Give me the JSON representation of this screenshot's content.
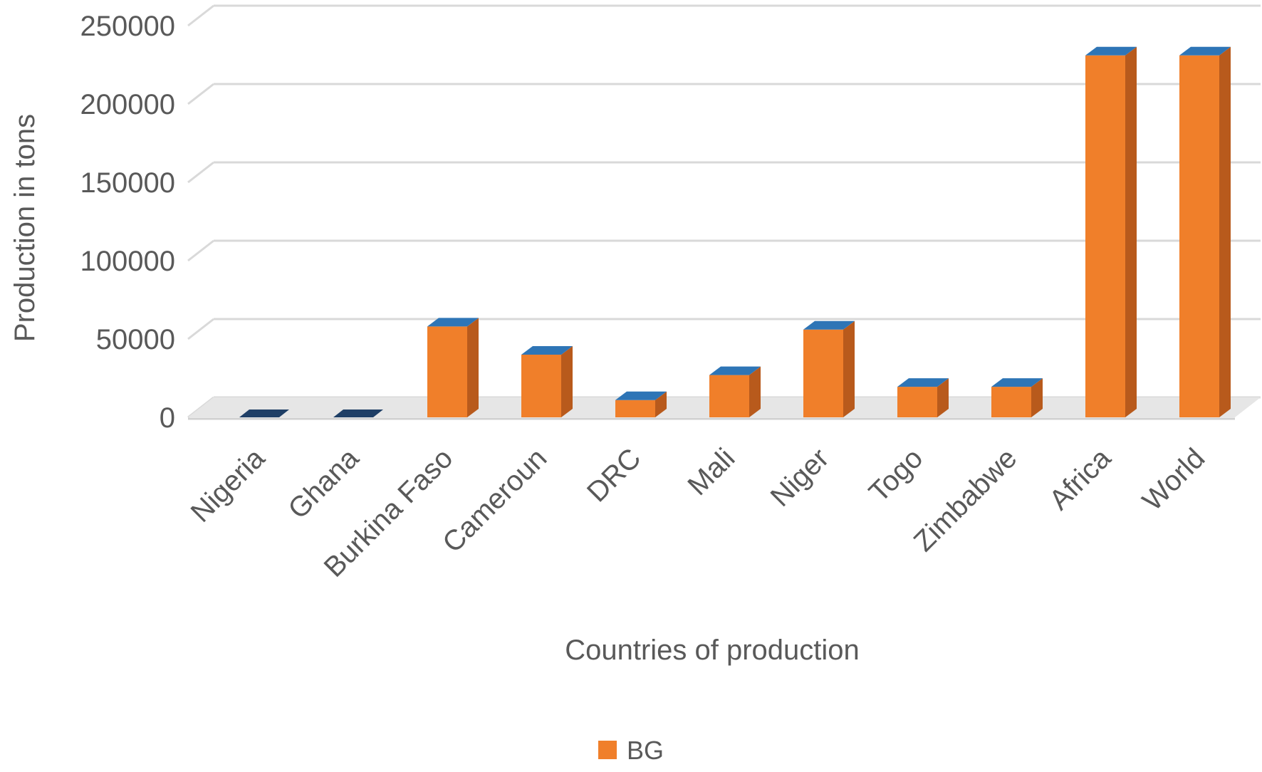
{
  "chart_data": {
    "type": "bar",
    "categories": [
      "Nigeria",
      "Ghana",
      "Burkina Faso",
      "Cameroun",
      "DRC",
      "Mali",
      "Niger",
      "Togo",
      "Zimbabwe",
      "Africa",
      "World"
    ],
    "series": [
      {
        "name": "BG",
        "values": [
          0,
          0,
          58000,
          40000,
          11000,
          27000,
          56000,
          19500,
          19500,
          231000,
          231000
        ]
      }
    ],
    "xlabel": "Countries of production",
    "ylabel": "Production in tons",
    "ylim": [
      0,
      250000
    ],
    "yticks": [
      0,
      50000,
      100000,
      150000,
      200000,
      250000
    ],
    "grid": true,
    "legend_position": "bottom",
    "colors": {
      "bar_front": "#f07f2a",
      "bar_side": "#b85a1c",
      "bar_top": "#2e75b6",
      "zero_bar": "#1f3f66",
      "grid": "#d9d9d9",
      "text": "#595959"
    }
  }
}
